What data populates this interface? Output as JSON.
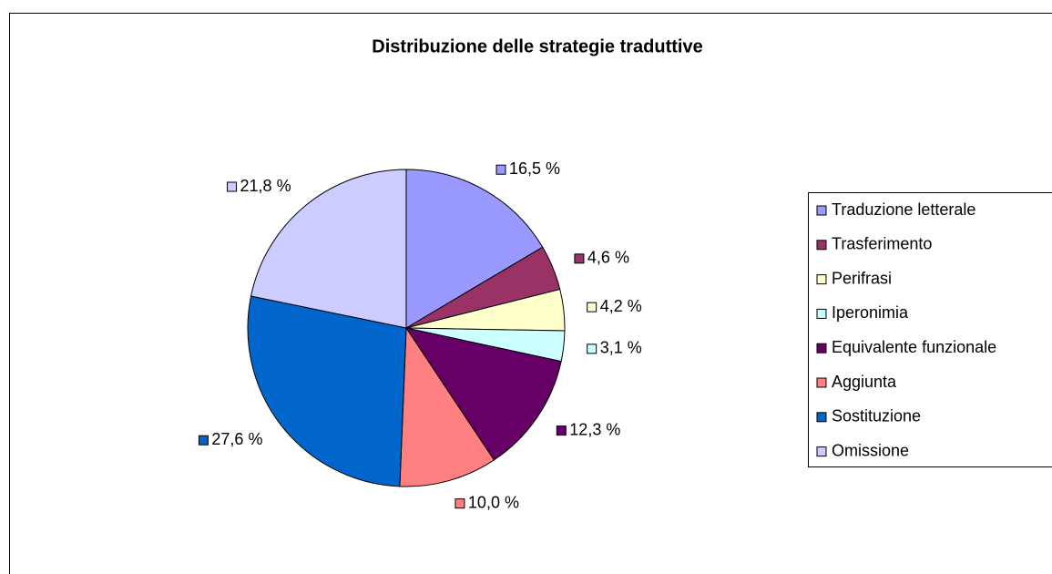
{
  "chart_data": {
    "type": "pie",
    "title": "Distribuzione delle strategie traduttive",
    "categories": [
      "Traduzione letterale",
      "Trasferimento",
      "Perifrasi",
      "Iperonimia",
      "Equivalente funzionale",
      "Aggiunta",
      "Sostituzione",
      "Omissione"
    ],
    "values": [
      16.5,
      4.6,
      4.2,
      3.1,
      12.3,
      10.0,
      27.6,
      21.8
    ],
    "value_labels": [
      "16,5 %",
      "4,6 %",
      "4,2 %",
      "3,1 %",
      "12,3 %",
      "10,0 %",
      "27,6 %",
      "21,8 %"
    ],
    "colors": [
      "#9999ff",
      "#993366",
      "#ffffcc",
      "#ccffff",
      "#660066",
      "#ff8080",
      "#0066cc",
      "#ccccff"
    ],
    "legend": "right"
  }
}
